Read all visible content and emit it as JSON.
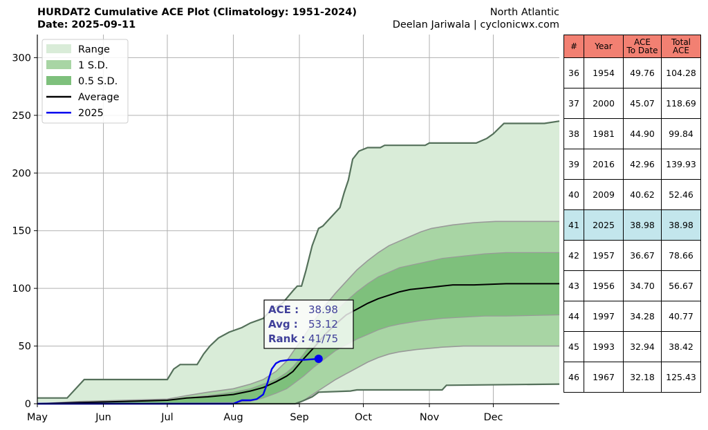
{
  "header": {
    "title": "HURDAT2 Cumulative ACE Plot (Climatology: 1951-2024)",
    "date": "Date: 2025-09-11",
    "region": "North Atlantic",
    "author": "Deelan Jariwala | cyclonicwx.com"
  },
  "chart_data": {
    "type": "area",
    "x_ticks": [
      "May",
      "Jun",
      "Jul",
      "Aug",
      "Sep",
      "Oct",
      "Nov",
      "Dec"
    ],
    "x_tick_days": [
      0,
      31,
      61,
      92,
      123,
      153,
      184,
      214
    ],
    "xlim_days": [
      0,
      245
    ],
    "y_ticks": [
      0,
      50,
      100,
      150,
      200,
      250,
      300
    ],
    "ylim": [
      0,
      320
    ],
    "grid": true,
    "legend_placement": "top-left",
    "legend": [
      "Range",
      "1 S.D.",
      "0.5 S.D.",
      "Average",
      "2025"
    ],
    "colors": {
      "range_fill": "#d9ecd8",
      "sd1_fill": "#a8d5a4",
      "sd05_fill": "#7ec07c",
      "range_edge": "#54705a",
      "sd_edge": "#999999",
      "average": "#000000",
      "current": "#0000ee",
      "annotation_text": "#40409a"
    },
    "range_max": [
      [
        0,
        5
      ],
      [
        14,
        5
      ],
      [
        22,
        21
      ],
      [
        61,
        21
      ],
      [
        64,
        30
      ],
      [
        67,
        34
      ],
      [
        75,
        34
      ],
      [
        78,
        43
      ],
      [
        81,
        50
      ],
      [
        85,
        57
      ],
      [
        90,
        62
      ],
      [
        96,
        66
      ],
      [
        100,
        70
      ],
      [
        106,
        74
      ],
      [
        110,
        82
      ],
      [
        115,
        87
      ],
      [
        120,
        98
      ],
      [
        122,
        102
      ],
      [
        124,
        102
      ],
      [
        126,
        115
      ],
      [
        129,
        137
      ],
      [
        132,
        152
      ],
      [
        134,
        154
      ],
      [
        136,
        158
      ],
      [
        140,
        166
      ],
      [
        142,
        170
      ],
      [
        144,
        183
      ],
      [
        146,
        194
      ],
      [
        148,
        212
      ],
      [
        151,
        219
      ],
      [
        155,
        222
      ],
      [
        161,
        222
      ],
      [
        163,
        224
      ],
      [
        182,
        224
      ],
      [
        184,
        226
      ],
      [
        206,
        226
      ],
      [
        211,
        230
      ],
      [
        214,
        234
      ],
      [
        219,
        243
      ],
      [
        238,
        243
      ],
      [
        245,
        245
      ]
    ],
    "range_min": [
      [
        0,
        0
      ],
      [
        121,
        0
      ],
      [
        124,
        2
      ],
      [
        129,
        6
      ],
      [
        132,
        10
      ],
      [
        147,
        11
      ],
      [
        150,
        12
      ],
      [
        190,
        12
      ],
      [
        192,
        16
      ],
      [
        245,
        17
      ]
    ],
    "sd1_upper": [
      [
        0,
        0
      ],
      [
        20,
        2
      ],
      [
        40,
        3
      ],
      [
        61,
        4
      ],
      [
        70,
        7
      ],
      [
        80,
        10
      ],
      [
        92,
        13
      ],
      [
        100,
        17
      ],
      [
        106,
        21
      ],
      [
        112,
        28
      ],
      [
        117,
        37
      ],
      [
        120,
        45
      ],
      [
        125,
        58
      ],
      [
        130,
        72
      ],
      [
        135,
        85
      ],
      [
        140,
        96
      ],
      [
        145,
        106
      ],
      [
        150,
        116
      ],
      [
        155,
        124
      ],
      [
        160,
        131
      ],
      [
        165,
        137
      ],
      [
        170,
        141
      ],
      [
        175,
        145
      ],
      [
        180,
        149
      ],
      [
        185,
        152
      ],
      [
        195,
        155
      ],
      [
        205,
        157
      ],
      [
        215,
        158
      ],
      [
        225,
        158
      ],
      [
        245,
        158
      ]
    ],
    "sd1_lower": [
      [
        0,
        0
      ],
      [
        122,
        0
      ],
      [
        126,
        4
      ],
      [
        130,
        9
      ],
      [
        135,
        15
      ],
      [
        140,
        21
      ],
      [
        145,
        26
      ],
      [
        150,
        31
      ],
      [
        155,
        36
      ],
      [
        160,
        40
      ],
      [
        165,
        43
      ],
      [
        170,
        45
      ],
      [
        178,
        47
      ],
      [
        190,
        49
      ],
      [
        200,
        50
      ],
      [
        210,
        50
      ],
      [
        245,
        50
      ]
    ],
    "sd05_upper": [
      [
        0,
        0
      ],
      [
        20,
        1
      ],
      [
        40,
        2
      ],
      [
        61,
        3
      ],
      [
        70,
        5
      ],
      [
        80,
        7
      ],
      [
        92,
        10
      ],
      [
        100,
        13
      ],
      [
        106,
        17
      ],
      [
        112,
        21
      ],
      [
        117,
        27
      ],
      [
        120,
        32
      ],
      [
        125,
        43
      ],
      [
        130,
        56
      ],
      [
        135,
        68
      ],
      [
        140,
        80
      ],
      [
        145,
        89
      ],
      [
        150,
        97
      ],
      [
        155,
        104
      ],
      [
        160,
        110
      ],
      [
        165,
        114
      ],
      [
        170,
        118
      ],
      [
        180,
        122
      ],
      [
        190,
        126
      ],
      [
        200,
        128
      ],
      [
        210,
        130
      ],
      [
        220,
        131
      ],
      [
        245,
        131
      ]
    ],
    "sd05_lower": [
      [
        0,
        0
      ],
      [
        40,
        0
      ],
      [
        61,
        0
      ],
      [
        92,
        1
      ],
      [
        100,
        2
      ],
      [
        106,
        5
      ],
      [
        112,
        9
      ],
      [
        117,
        13
      ],
      [
        120,
        17
      ],
      [
        125,
        24
      ],
      [
        130,
        32
      ],
      [
        135,
        39
      ],
      [
        140,
        46
      ],
      [
        145,
        51
      ],
      [
        150,
        56
      ],
      [
        155,
        60
      ],
      [
        160,
        64
      ],
      [
        165,
        67
      ],
      [
        170,
        69
      ],
      [
        180,
        72
      ],
      [
        190,
        74
      ],
      [
        200,
        75
      ],
      [
        210,
        76
      ],
      [
        220,
        76
      ],
      [
        245,
        77
      ]
    ],
    "average": [
      [
        0,
        0
      ],
      [
        20,
        1
      ],
      [
        40,
        2
      ],
      [
        61,
        3
      ],
      [
        70,
        5
      ],
      [
        80,
        6
      ],
      [
        92,
        8
      ],
      [
        100,
        11
      ],
      [
        106,
        14
      ],
      [
        112,
        19
      ],
      [
        117,
        24
      ],
      [
        120,
        28
      ],
      [
        125,
        39
      ],
      [
        130,
        49
      ],
      [
        135,
        60
      ],
      [
        140,
        69
      ],
      [
        145,
        77
      ],
      [
        150,
        82
      ],
      [
        155,
        87
      ],
      [
        160,
        91
      ],
      [
        165,
        94
      ],
      [
        170,
        97
      ],
      [
        175,
        99
      ],
      [
        185,
        101
      ],
      [
        195,
        103
      ],
      [
        205,
        103
      ],
      [
        220,
        104
      ],
      [
        245,
        104
      ]
    ],
    "current_2025": [
      [
        0,
        0
      ],
      [
        70,
        0
      ],
      [
        92,
        0
      ],
      [
        96,
        3
      ],
      [
        100,
        3
      ],
      [
        103,
        4
      ],
      [
        106,
        8
      ],
      [
        108,
        18
      ],
      [
        110,
        30
      ],
      [
        112,
        35
      ],
      [
        114,
        37
      ],
      [
        118,
        38
      ],
      [
        125,
        38
      ],
      [
        132,
        38.98
      ]
    ],
    "current_marker": [
      132,
      38.98
    ],
    "annotation": {
      "ace_label": "ACE :",
      "ace_value": "38.98",
      "avg_label": "Avg :",
      "avg_value": "53.12",
      "rank_label": "Rank :",
      "rank_value": "41/75"
    }
  },
  "table": {
    "headers": [
      "#",
      "Year",
      "ACE\nTo Date",
      "Total\nACE"
    ],
    "highlight_row": 5,
    "rows": [
      [
        "36",
        "1954",
        "49.76",
        "104.28"
      ],
      [
        "37",
        "2000",
        "45.07",
        "118.69"
      ],
      [
        "38",
        "1981",
        "44.90",
        "99.84"
      ],
      [
        "39",
        "2016",
        "42.96",
        "139.93"
      ],
      [
        "40",
        "2009",
        "40.62",
        "52.46"
      ],
      [
        "41",
        "2025",
        "38.98",
        "38.98"
      ],
      [
        "42",
        "1957",
        "36.67",
        "78.66"
      ],
      [
        "43",
        "1956",
        "34.70",
        "56.67"
      ],
      [
        "44",
        "1997",
        "34.28",
        "40.77"
      ],
      [
        "45",
        "1993",
        "32.94",
        "38.42"
      ],
      [
        "46",
        "1967",
        "32.18",
        "125.43"
      ]
    ]
  }
}
